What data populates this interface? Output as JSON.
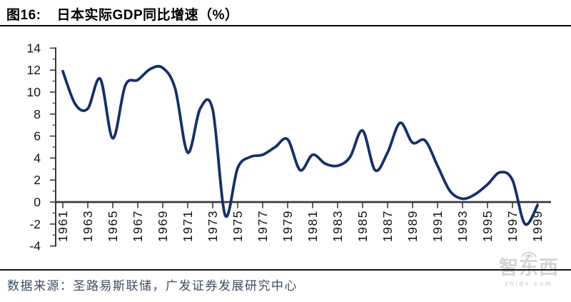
{
  "header": {
    "figure_label": "图16:",
    "title": "日本实际GDP同比增速（%）"
  },
  "chart_data": {
    "type": "line",
    "title": "日本实际GDP同比增速（%）",
    "xlabel": "",
    "ylabel": "",
    "grid": false,
    "legend": "none",
    "ylim": [
      -4,
      14
    ],
    "x": [
      1961,
      1962,
      1963,
      1964,
      1965,
      1966,
      1967,
      1968,
      1969,
      1970,
      1971,
      1972,
      1973,
      1974,
      1975,
      1976,
      1977,
      1978,
      1979,
      1980,
      1981,
      1982,
      1983,
      1984,
      1985,
      1986,
      1987,
      1988,
      1989,
      1990,
      1991,
      1992,
      1993,
      1994,
      1995,
      1996,
      1997,
      1998,
      1999
    ],
    "values": [
      11.9,
      8.9,
      8.5,
      11.2,
      5.8,
      10.6,
      11.1,
      12.1,
      12.2,
      10.3,
      4.5,
      8.5,
      8.4,
      -1.2,
      3.1,
      4.1,
      4.3,
      5.0,
      5.7,
      2.9,
      4.3,
      3.5,
      3.3,
      4.1,
      6.5,
      2.9,
      4.5,
      7.2,
      5.4,
      5.6,
      3.3,
      1.0,
      0.3,
      0.7,
      1.6,
      2.7,
      2.0,
      -2.0,
      -0.3
    ],
    "series_name": "日本实际GDP同比增速",
    "yticks": [
      14,
      12,
      10,
      8,
      6,
      4,
      2,
      0,
      -2,
      -4
    ],
    "yticks_minor": [
      13,
      11,
      9,
      7,
      5,
      3,
      1,
      -1,
      -3
    ],
    "xtick_labels": [
      "1961",
      "1963",
      "1965",
      "1967",
      "1969",
      "1971",
      "1973",
      "1975",
      "1977",
      "1979",
      "1981",
      "1983",
      "1985",
      "1987",
      "1989",
      "1991",
      "1993",
      "1995",
      "1997",
      "1999"
    ],
    "line_color": "#16306b",
    "axis_color": "#3a3a3a",
    "tick_label_color": "#141414"
  },
  "footer": {
    "source_text": "数据来源：圣路易斯联储，广发证券发展研究中心"
  },
  "watermark": {
    "logo_text": "智东西",
    "url_text": "zhidx.com"
  }
}
